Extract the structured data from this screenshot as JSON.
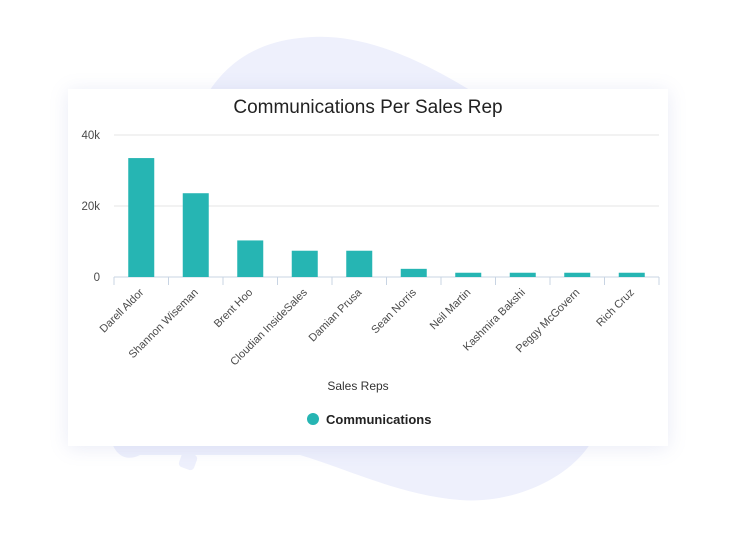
{
  "chart_data": {
    "type": "bar",
    "title": "Communications Per Sales Rep",
    "xlabel": "Sales Reps",
    "ylabel": "",
    "categories": [
      "Darell Aldor",
      "Shannon Wiseman",
      "Brent Hoo",
      "Cloudian InsideSales",
      "Damian Prusa",
      "Sean Norris",
      "Neil Martin",
      "Kashmira Bakshi",
      "Peggy McGovern",
      "Rich Cruz"
    ],
    "series": [
      {
        "name": "Communications",
        "values": [
          33500,
          23600,
          10300,
          7400,
          7400,
          2300,
          1200,
          1200,
          1200,
          1200
        ]
      }
    ],
    "ylim": [
      0,
      40000
    ],
    "yticks": [
      {
        "value": 0,
        "label": "0"
      },
      {
        "value": 20000,
        "label": "20k"
      },
      {
        "value": 40000,
        "label": "40k"
      }
    ],
    "grid": true,
    "legend": "bottom-center",
    "colors": {
      "bar": "#26b5b3",
      "grid": "#e6e6e6",
      "axis": "#c8d4e3",
      "blob": "#eef0fc"
    }
  }
}
